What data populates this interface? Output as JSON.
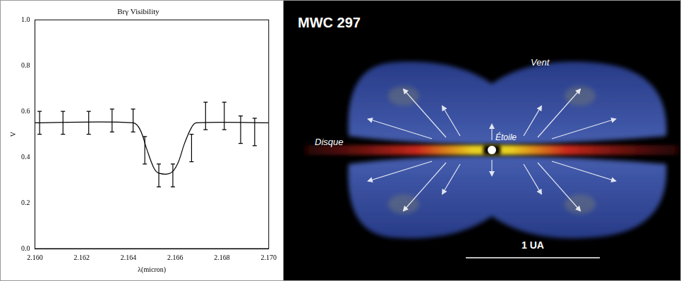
{
  "chart_data": {
    "type": "scatter",
    "title": "Brγ Visibility",
    "x_label": "λ(micron)",
    "y_label": "V",
    "xlim": [
      2.16,
      2.17
    ],
    "xticks": [
      {
        "value": 2.16,
        "label": "2.160"
      },
      {
        "value": 2.162,
        "label": "2.162"
      },
      {
        "value": 2.164,
        "label": "2.164"
      },
      {
        "value": 2.166,
        "label": "2.166"
      },
      {
        "value": 2.168,
        "label": "2.168"
      },
      {
        "value": 2.17,
        "label": "2.170"
      }
    ],
    "ylim": [
      0,
      1
    ],
    "yticks": [
      {
        "value": 0,
        "label": "0.0"
      },
      {
        "value": 0.2,
        "label": "0.2"
      },
      {
        "value": 0.4,
        "label": "0.4"
      },
      {
        "value": 0.6,
        "label": "0.6"
      },
      {
        "value": 0.8,
        "label": "0.8"
      },
      {
        "value": 1,
        "label": "1.0"
      }
    ],
    "grid": false,
    "series": [
      {
        "type": "scatter",
        "marker": "none",
        "color": "#000000",
        "x": [
          2.1602,
          2.1612,
          2.1623,
          2.1633,
          2.1642,
          2.1647,
          2.1653,
          2.1659,
          2.1667,
          2.1673,
          2.1681,
          2.1688,
          2.1694
        ],
        "values": [
          0.55,
          0.55,
          0.55,
          0.56,
          0.56,
          0.43,
          0.32,
          0.32,
          0.44,
          0.58,
          0.58,
          0.52,
          0.51
        ],
        "errors": [
          0.05,
          0.05,
          0.05,
          0.05,
          0.05,
          0.06,
          0.05,
          0.05,
          0.06,
          0.06,
          0.06,
          0.06,
          0.06
        ]
      },
      {
        "type": "line",
        "line_style": "solid",
        "color": "#000000",
        "x": [
          2.16,
          2.1642,
          2.1645,
          2.1648,
          2.1651,
          2.1653,
          2.1658,
          2.1661,
          2.1664,
          2.1667,
          2.1669,
          2.17
        ],
        "values": [
          0.55,
          0.55,
          0.52,
          0.43,
          0.35,
          0.33,
          0.33,
          0.37,
          0.46,
          0.53,
          0.55,
          0.55
        ]
      }
    ]
  },
  "illustration": {
    "title": "MWC 297",
    "wind": "Vent",
    "disk": "Disque",
    "star": "Étoile",
    "scale_bar": "1 UA"
  }
}
